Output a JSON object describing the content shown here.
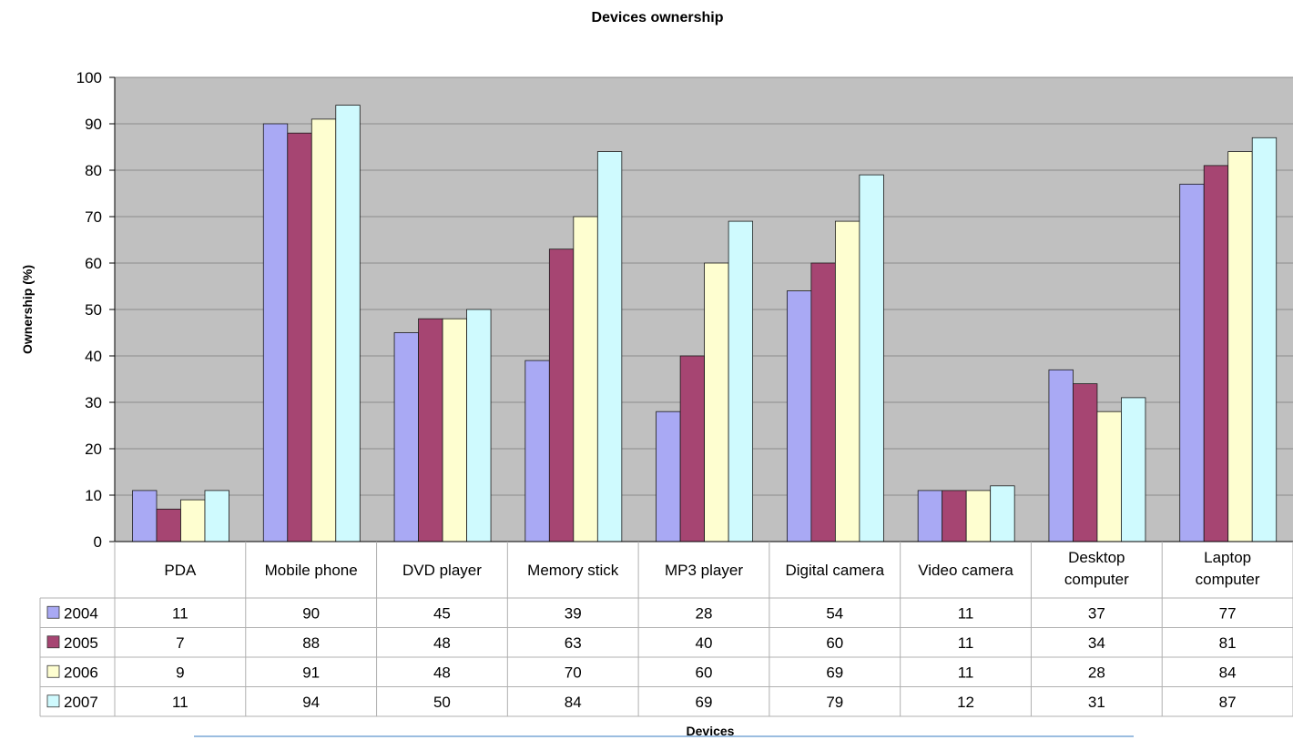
{
  "colors": {
    "plot_background": "#c0c0c0",
    "gridline": "#8c8c8c",
    "series": [
      "#a9a9f4",
      "#a64572",
      "#fefed0",
      "#cffafe"
    ]
  },
  "chart_data": {
    "type": "bar",
    "title": "Devices ownership",
    "xlabel": "Devices",
    "ylabel": "Ownership (%)",
    "ylim": [
      0,
      100
    ],
    "yticks": [
      0,
      10,
      20,
      30,
      40,
      50,
      60,
      70,
      80,
      90,
      100
    ],
    "grid": true,
    "legend": "data-table-left",
    "categories": [
      [
        "PDA"
      ],
      [
        "Mobile phone"
      ],
      [
        "DVD player"
      ],
      [
        "Memory stick"
      ],
      [
        "MP3 player"
      ],
      [
        "Digital camera"
      ],
      [
        "Video camera"
      ],
      [
        "Desktop",
        "computer"
      ],
      [
        "Laptop",
        "computer"
      ]
    ],
    "series": [
      {
        "name": "2004",
        "values": [
          11,
          90,
          45,
          39,
          28,
          54,
          11,
          37,
          77
        ]
      },
      {
        "name": "2005",
        "values": [
          7,
          88,
          48,
          63,
          40,
          60,
          11,
          34,
          81
        ]
      },
      {
        "name": "2006",
        "values": [
          9,
          91,
          48,
          70,
          60,
          69,
          11,
          28,
          84
        ]
      },
      {
        "name": "2007",
        "values": [
          11,
          94,
          50,
          84,
          69,
          79,
          12,
          31,
          87
        ]
      }
    ]
  }
}
